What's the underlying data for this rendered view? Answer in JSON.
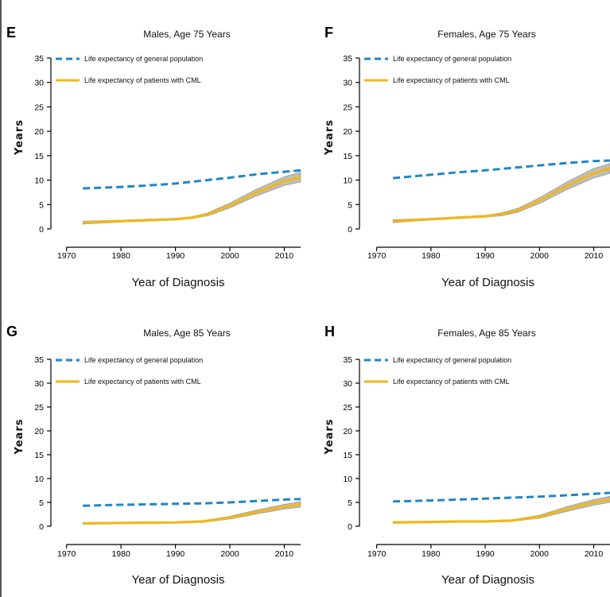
{
  "colors": {
    "general": "#1f86c8",
    "cml": "#f0b81d",
    "band": "#a8a8a8"
  },
  "chart_data": [
    {
      "type": "line",
      "panel_label": "E",
      "title": "Males, Age 75 Years",
      "xlabel": "Year of Diagnosis",
      "ylabel": "Years",
      "xlim": [
        1968,
        2013
      ],
      "ylim": [
        0,
        35
      ],
      "xticks": [
        1970,
        1980,
        1990,
        2000,
        2010
      ],
      "yticks": [
        0,
        5,
        10,
        15,
        20,
        25,
        30,
        35
      ],
      "legend_position": "top-left",
      "series": [
        {
          "name": "Life expectancy of general population",
          "style": "dashed",
          "x": [
            1973,
            1980,
            1985,
            1990,
            1995,
            2000,
            2005,
            2010,
            2013
          ],
          "y": [
            8.3,
            8.6,
            8.9,
            9.3,
            9.9,
            10.5,
            11.2,
            11.7,
            12.0
          ]
        },
        {
          "name": "Life expectancy of patients with CML",
          "style": "solid",
          "x": [
            1973,
            1980,
            1985,
            1990,
            1993,
            1996,
            2000,
            2005,
            2010,
            2013
          ],
          "y": [
            1.3,
            1.6,
            1.8,
            2.0,
            2.3,
            3.0,
            4.8,
            7.5,
            9.8,
            10.6
          ],
          "ci_lower": [
            1.0,
            1.4,
            1.6,
            1.8,
            2.1,
            2.7,
            4.3,
            6.8,
            8.9,
            9.6
          ],
          "ci_upper": [
            1.6,
            1.8,
            2.0,
            2.2,
            2.5,
            3.3,
            5.3,
            8.2,
            10.7,
            11.6
          ]
        }
      ]
    },
    {
      "type": "line",
      "panel_label": "F",
      "title": "Females, Age 75 Years",
      "xlabel": "Year of Diagnosis",
      "ylabel": "Years",
      "xlim": [
        1968,
        2013
      ],
      "ylim": [
        0,
        35
      ],
      "xticks": [
        1970,
        1980,
        1990,
        2000,
        2010
      ],
      "yticks": [
        0,
        5,
        10,
        15,
        20,
        25,
        30,
        35
      ],
      "legend_position": "top-left",
      "series": [
        {
          "name": "Life expectancy of general population",
          "style": "dashed",
          "x": [
            1973,
            1980,
            1985,
            1990,
            1995,
            2000,
            2005,
            2010,
            2013
          ],
          "y": [
            10.4,
            11.1,
            11.6,
            12.0,
            12.5,
            13.0,
            13.5,
            13.9,
            14.0
          ]
        },
        {
          "name": "Life expectancy of patients with CML",
          "style": "solid",
          "x": [
            1973,
            1980,
            1985,
            1990,
            1993,
            1996,
            2000,
            2005,
            2010,
            2013
          ],
          "y": [
            1.6,
            2.0,
            2.3,
            2.6,
            3.0,
            3.8,
            5.8,
            8.8,
            11.4,
            12.4
          ],
          "ci_lower": [
            1.3,
            1.8,
            2.1,
            2.4,
            2.7,
            3.4,
            5.2,
            8.0,
            10.4,
            11.4
          ],
          "ci_upper": [
            1.9,
            2.2,
            2.5,
            2.8,
            3.3,
            4.2,
            6.4,
            9.6,
            12.4,
            13.4
          ]
        }
      ]
    },
    {
      "type": "line",
      "panel_label": "G",
      "title": "Males, Age 85 Years",
      "xlabel": "Year of Diagnosis",
      "ylabel": "Years",
      "xlim": [
        1968,
        2013
      ],
      "ylim": [
        0,
        35
      ],
      "xticks": [
        1970,
        1980,
        1990,
        2000,
        2010
      ],
      "yticks": [
        0,
        5,
        10,
        15,
        20,
        25,
        30,
        35
      ],
      "legend_position": "top-left",
      "series": [
        {
          "name": "Life expectancy of general population",
          "style": "dashed",
          "x": [
            1973,
            1980,
            1985,
            1990,
            1995,
            2000,
            2005,
            2010,
            2013
          ],
          "y": [
            4.3,
            4.5,
            4.6,
            4.7,
            4.8,
            5.0,
            5.3,
            5.6,
            5.7
          ]
        },
        {
          "name": "Life expectancy of patients with CML",
          "style": "solid",
          "x": [
            1973,
            1980,
            1985,
            1990,
            1995,
            2000,
            2005,
            2010,
            2013
          ],
          "y": [
            0.6,
            0.7,
            0.75,
            0.8,
            1.0,
            1.8,
            3.0,
            4.1,
            4.6
          ],
          "ci_lower": [
            0.4,
            0.55,
            0.6,
            0.65,
            0.8,
            1.5,
            2.6,
            3.6,
            4.0
          ],
          "ci_upper": [
            0.8,
            0.85,
            0.9,
            0.95,
            1.2,
            2.1,
            3.4,
            4.6,
            5.2
          ]
        }
      ]
    },
    {
      "type": "line",
      "panel_label": "H",
      "title": "Females, Age 85 Years",
      "xlabel": "Year of Diagnosis",
      "ylabel": "Years",
      "xlim": [
        1968,
        2013
      ],
      "ylim": [
        0,
        35
      ],
      "xticks": [
        1970,
        1980,
        1990,
        2000,
        2010
      ],
      "yticks": [
        0,
        5,
        10,
        15,
        20,
        25,
        30,
        35
      ],
      "legend_position": "top-left",
      "series": [
        {
          "name": "Life expectancy of general population",
          "style": "dashed",
          "x": [
            1973,
            1980,
            1985,
            1990,
            1995,
            2000,
            2005,
            2010,
            2013
          ],
          "y": [
            5.2,
            5.4,
            5.6,
            5.8,
            6.0,
            6.2,
            6.5,
            6.8,
            7.0
          ]
        },
        {
          "name": "Life expectancy of patients with CML",
          "style": "solid",
          "x": [
            1973,
            1980,
            1985,
            1990,
            1995,
            2000,
            2005,
            2010,
            2013
          ],
          "y": [
            0.8,
            0.9,
            1.0,
            1.0,
            1.2,
            2.0,
            3.6,
            5.0,
            5.6
          ],
          "ci_lower": [
            0.6,
            0.75,
            0.85,
            0.85,
            1.0,
            1.7,
            3.1,
            4.4,
            5.0
          ],
          "ci_upper": [
            1.0,
            1.05,
            1.15,
            1.15,
            1.4,
            2.3,
            4.1,
            5.6,
            6.3
          ]
        }
      ]
    }
  ]
}
